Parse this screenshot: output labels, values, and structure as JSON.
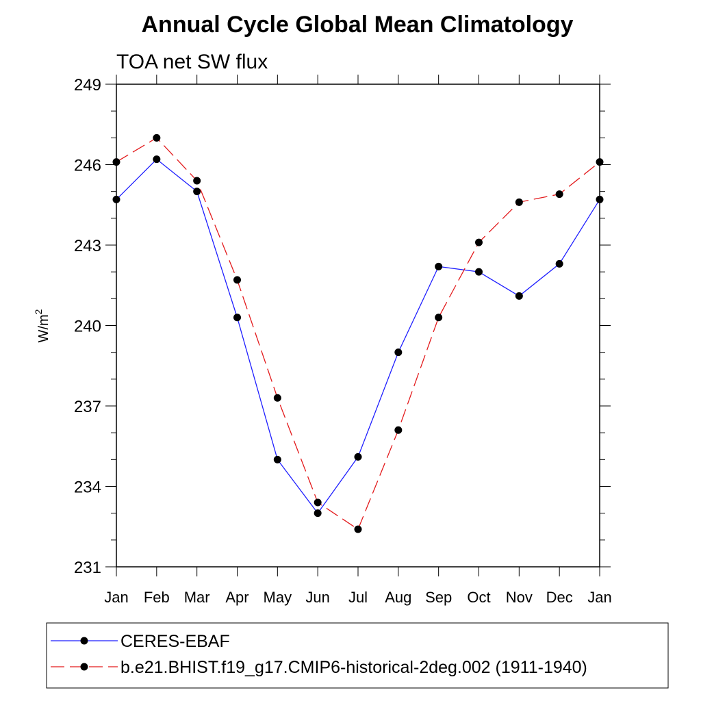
{
  "chart_data": {
    "type": "line",
    "title": "Annual Cycle Global Mean Climatology",
    "subtitle": "TOA net SW flux",
    "xlabel": "",
    "ylabel": "W/m",
    "ylabel_superscript": "2",
    "categories": [
      "Jan",
      "Feb",
      "Mar",
      "Apr",
      "May",
      "Jun",
      "Jul",
      "Aug",
      "Sep",
      "Oct",
      "Nov",
      "Dec",
      "Jan"
    ],
    "ylim": [
      231,
      249
    ],
    "yticks": [
      231,
      234,
      237,
      240,
      243,
      246,
      249
    ],
    "yticks_labels": [
      "231",
      "234",
      "237",
      "240",
      "243",
      "246",
      "249"
    ],
    "grid": false,
    "legend_position": "bottom",
    "series": [
      {
        "name": "CERES-EBAF",
        "color": "#1f1fff",
        "dash": "solid",
        "values": [
          244.7,
          246.2,
          245.0,
          240.3,
          235.0,
          233.0,
          235.1,
          239.0,
          242.2,
          242.0,
          241.1,
          242.3,
          244.7
        ]
      },
      {
        "name": "b.e21.BHIST.f19_g17.CMIP6-historical-2deg.002 (1911-1940)",
        "color": "#e31a1c",
        "dash": "dashed",
        "values": [
          246.1,
          247.0,
          245.4,
          241.7,
          237.3,
          233.4,
          232.4,
          236.1,
          240.3,
          243.1,
          244.6,
          244.9,
          246.1
        ]
      }
    ]
  }
}
